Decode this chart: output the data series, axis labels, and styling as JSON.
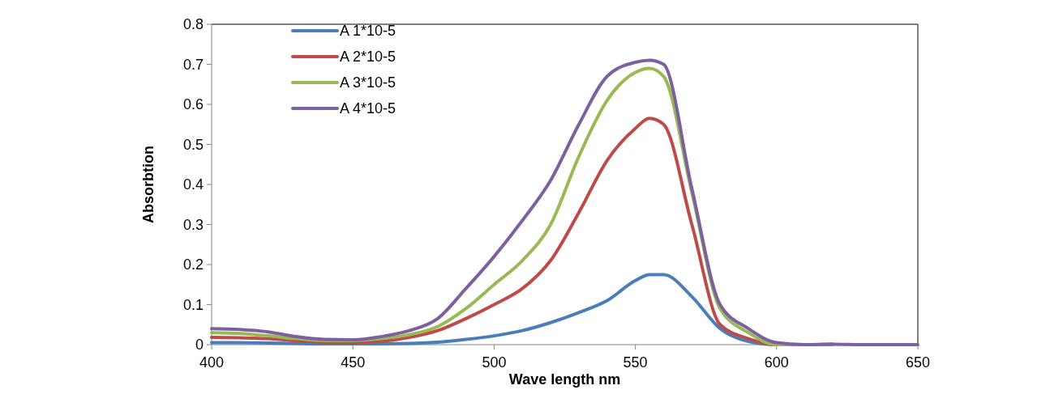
{
  "chart_data": {
    "type": "line",
    "xlabel": "Wave length nm",
    "ylabel": "Absorbtion",
    "x": [
      400,
      410,
      420,
      430,
      440,
      450,
      460,
      470,
      480,
      490,
      500,
      510,
      520,
      530,
      540,
      550,
      555,
      560,
      570,
      580,
      590,
      600,
      610,
      620,
      630,
      640,
      650
    ],
    "xlim": [
      400,
      650
    ],
    "xticks": [
      400,
      450,
      500,
      550,
      600,
      650
    ],
    "ylim": [
      0,
      0.8
    ],
    "yticks": [
      0,
      0.1,
      0.2,
      0.3,
      0.4,
      0.5,
      0.6,
      0.7,
      0.8
    ],
    "grid": false,
    "legend": "top left",
    "marker": "none",
    "line_style": "solid",
    "series": [
      {
        "name": "A 1*10-5",
        "color": "#4a7ebb",
        "values": [
          0.005,
          0.005,
          0.004,
          0.003,
          0.002,
          0.002,
          0.002,
          0.003,
          0.006,
          0.013,
          0.022,
          0.035,
          0.055,
          0.08,
          0.11,
          0.16,
          0.175,
          0.175,
          0.12,
          0.04,
          0.008,
          0,
          0,
          0.001,
          null,
          null,
          null
        ]
      },
      {
        "name": "A 2*10-5",
        "color": "#be4b48",
        "values": [
          0.018,
          0.017,
          0.015,
          0.01,
          0.006,
          0.005,
          0.008,
          0.018,
          0.035,
          0.065,
          0.1,
          0.14,
          0.21,
          0.33,
          0.46,
          0.54,
          0.565,
          0.55,
          0.3,
          0.05,
          0.015,
          0,
          0,
          null,
          null,
          null,
          null
        ]
      },
      {
        "name": "A 3*10-5",
        "color": "#98b954",
        "values": [
          0.03,
          0.028,
          0.022,
          0.015,
          0.01,
          0.01,
          0.015,
          0.025,
          0.045,
          0.09,
          0.15,
          0.21,
          0.3,
          0.47,
          0.61,
          0.68,
          0.69,
          0.67,
          0.38,
          0.09,
          0.03,
          0,
          0,
          0.001,
          null,
          null,
          null
        ]
      },
      {
        "name": "A 4*10-5",
        "color": "#7d60a0",
        "values": [
          0.04,
          0.038,
          0.032,
          0.02,
          0.013,
          0.012,
          0.02,
          0.035,
          0.065,
          0.14,
          0.22,
          0.31,
          0.41,
          0.55,
          0.67,
          0.705,
          0.71,
          0.7,
          0.39,
          0.1,
          0.04,
          0.005,
          0,
          0.001,
          0,
          0,
          0
        ]
      }
    ]
  }
}
